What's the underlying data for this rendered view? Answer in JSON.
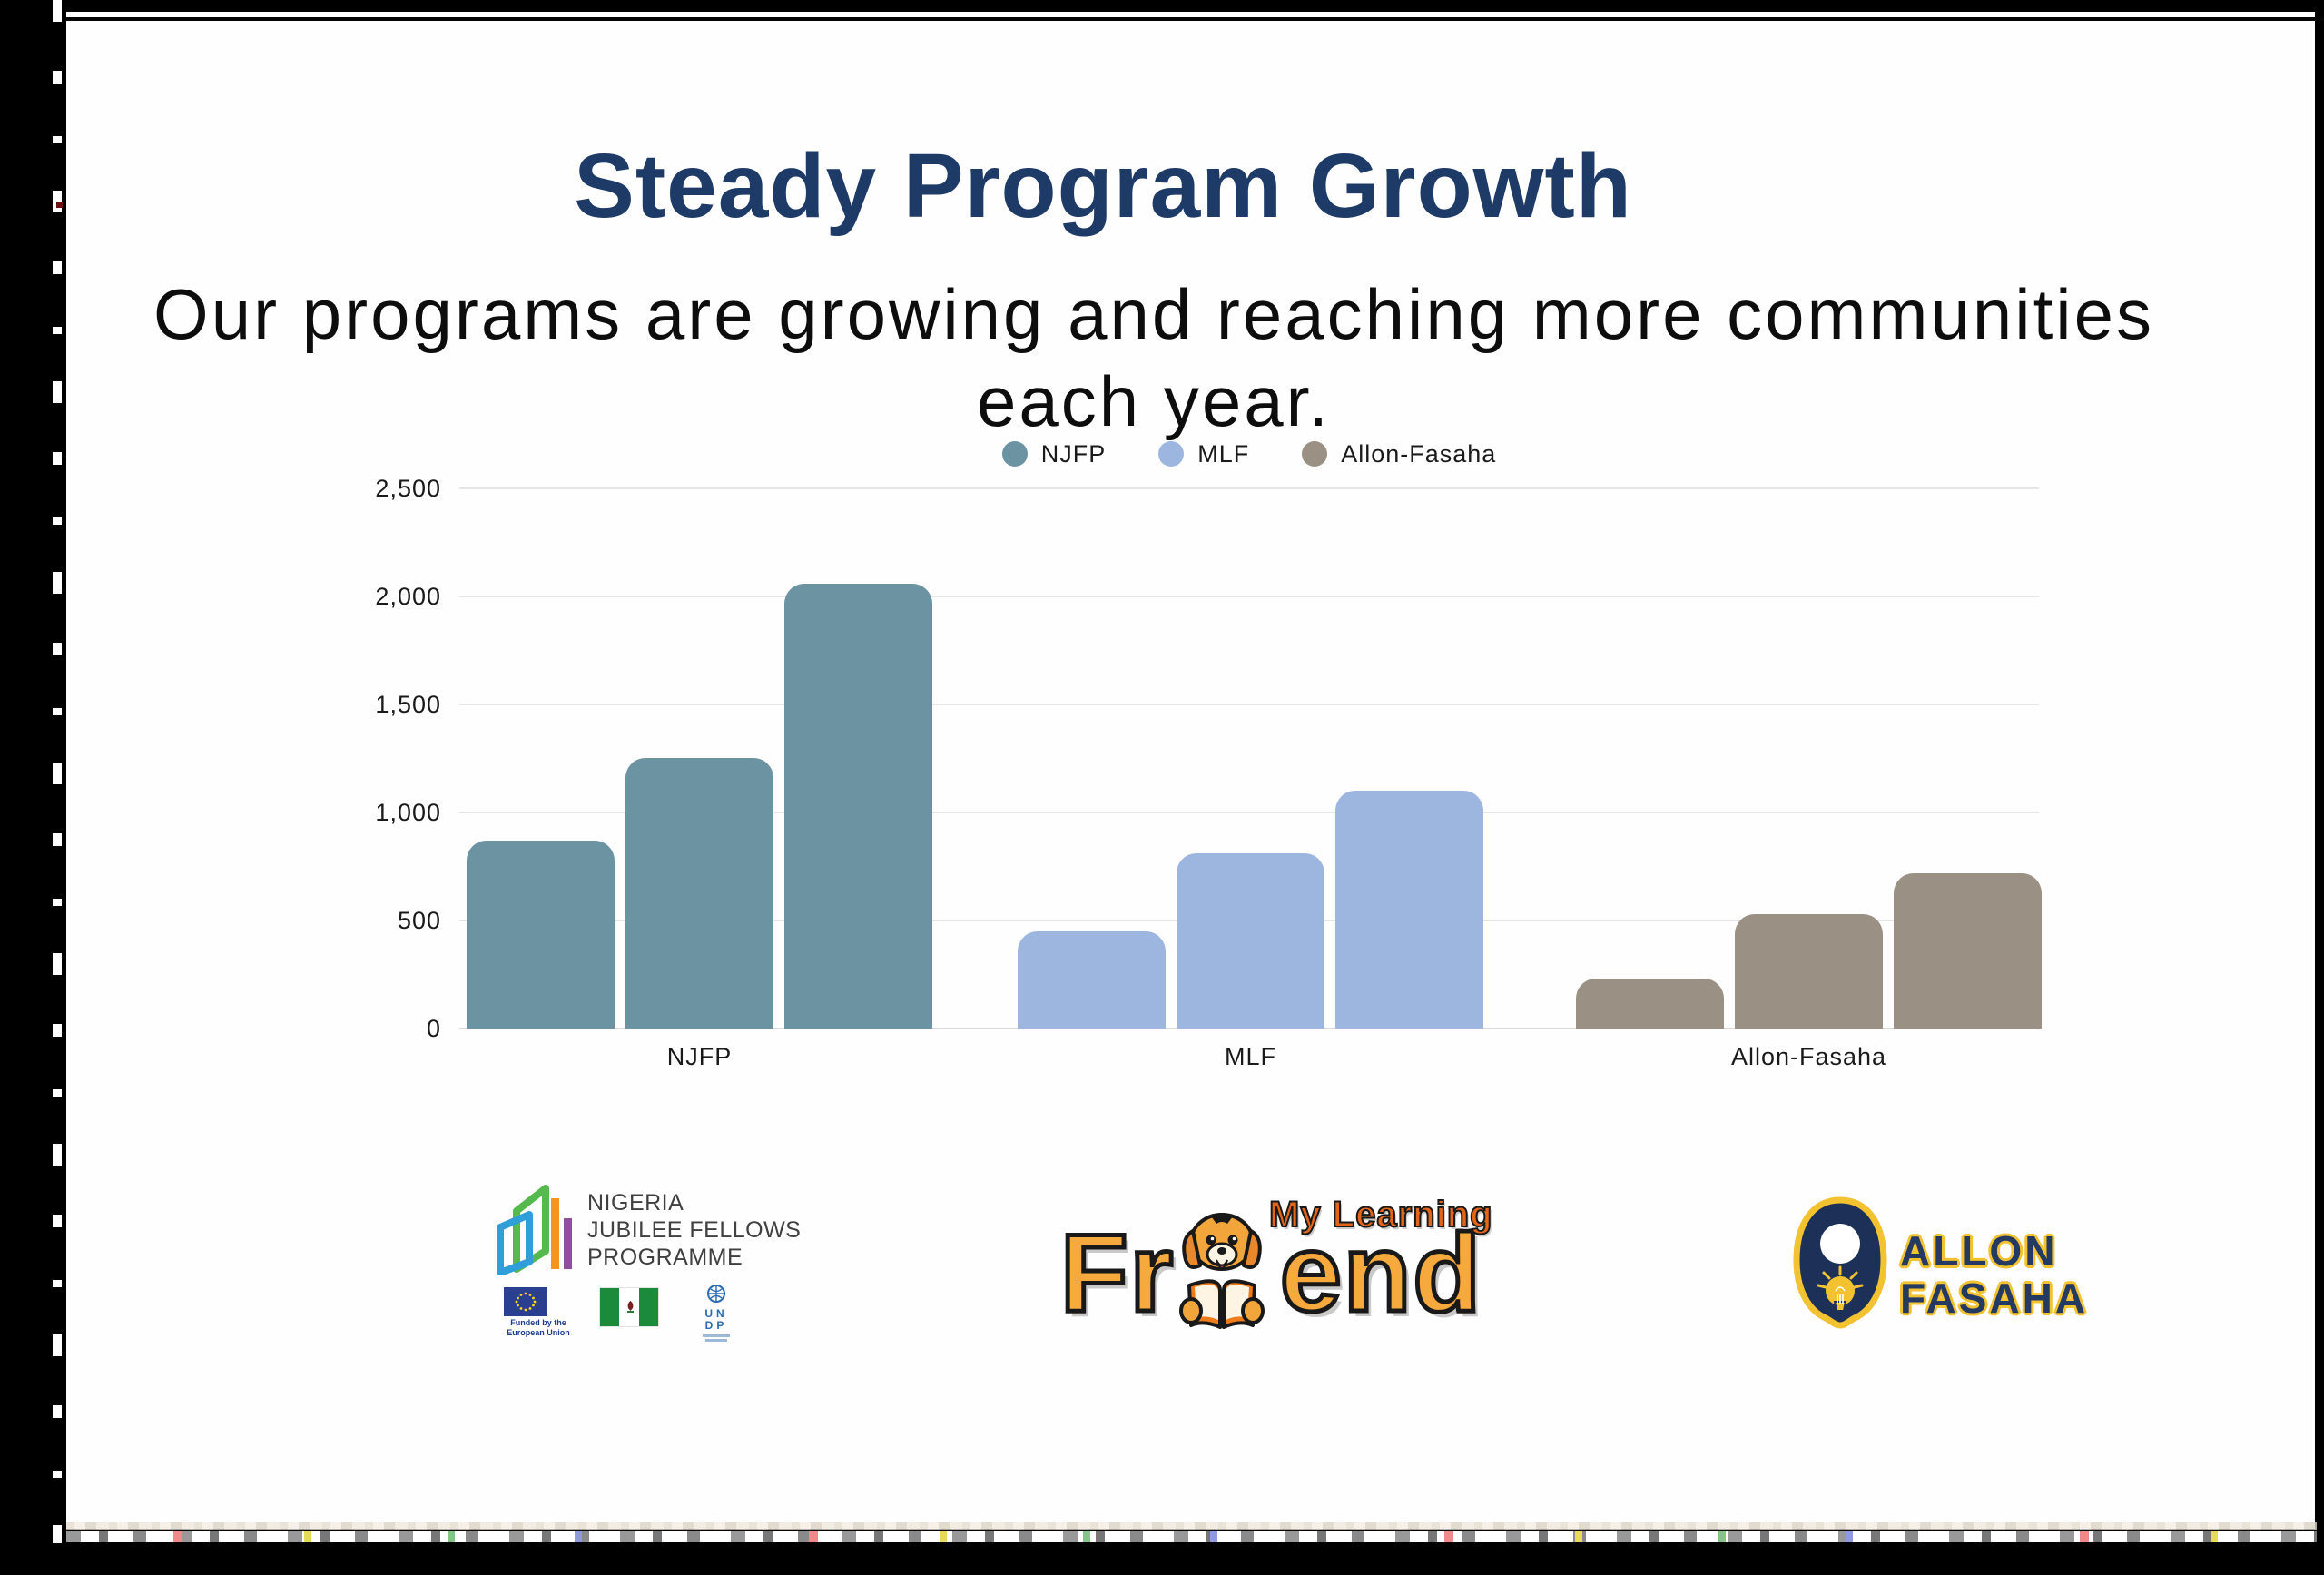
{
  "slide": {
    "title": "Steady Program Growth",
    "subtitle_line1": "Our programs are growing and reaching more communities",
    "subtitle_line2": "each year."
  },
  "chart_data": {
    "type": "bar",
    "title": "",
    "categories": [
      "NJFP",
      "MLF",
      "Allon-Fasaha"
    ],
    "series": [
      {
        "name": "NJFP",
        "color": "#6b93a1",
        "values": [
          870,
          1250,
          2060
        ]
      },
      {
        "name": "MLF",
        "color": "#9cb6e0",
        "values": [
          450,
          810,
          1100
        ]
      },
      {
        "name": "Allon-Fasaha",
        "color": "#9a9083",
        "values": [
          230,
          530,
          720
        ]
      }
    ],
    "ylim": [
      0,
      2500
    ],
    "yticks": [
      {
        "value": 0,
        "label": "0"
      },
      {
        "value": 500,
        "label": "500"
      },
      {
        "value": 1000,
        "label": "1,000"
      },
      {
        "value": 1500,
        "label": "1,500"
      },
      {
        "value": 2000,
        "label": "2,000"
      },
      {
        "value": 2500,
        "label": "2,500"
      }
    ],
    "grid": "horizontal",
    "legend_position": "top-center"
  },
  "logos": {
    "njfp": {
      "line1": "NIGERIA",
      "line2": "JUBILEE FELLOWS",
      "line3": "PROGRAMME",
      "eu_caption": "Funded by the European Union",
      "undp_line1": "UN",
      "undp_line2": "DP"
    },
    "mlf": {
      "tagline": "My Learning",
      "word_prefix": "Fr",
      "word_suffix": "end"
    },
    "allon": {
      "line1": "ALLON",
      "line2": "FASAHA"
    }
  },
  "colors": {
    "title_navy": "#1e3a66",
    "njfp_teal": "#6b93a1",
    "mlf_blue": "#9cb6e0",
    "allon_taupe": "#9a9083",
    "allon_navy": "#243a63",
    "allon_yellow": "#f2c230",
    "mlf_orange": "#f6a93c"
  }
}
